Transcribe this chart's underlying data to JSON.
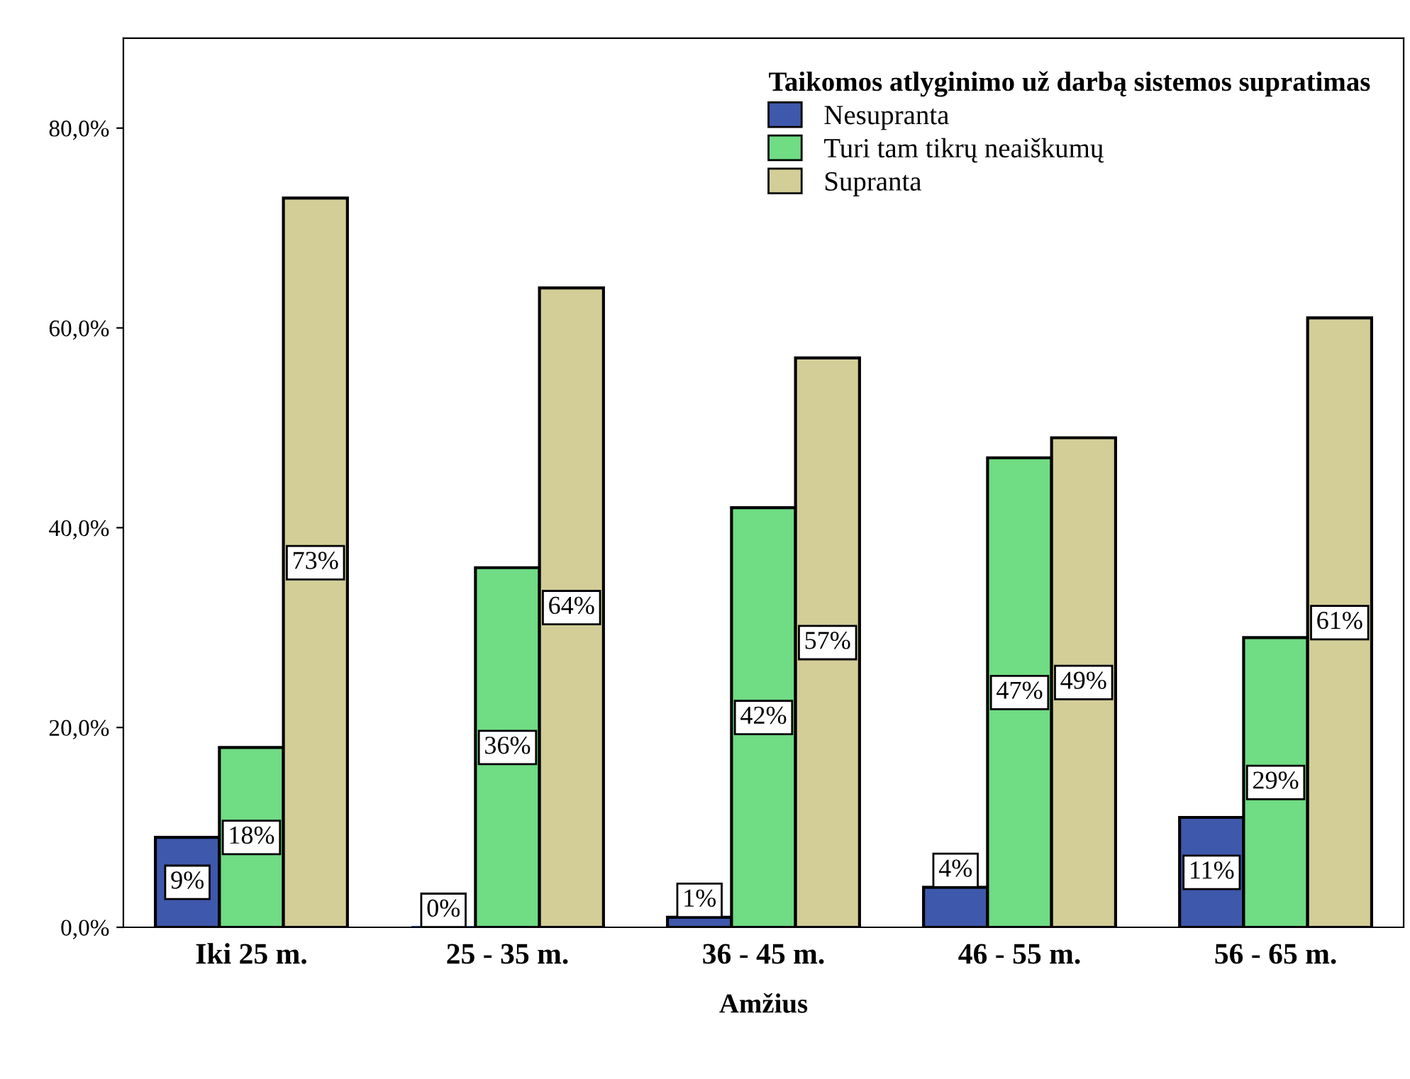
{
  "chart_data": {
    "type": "bar",
    "xlabel": "Amžius",
    "legend_title": "Taikomos atlyginimo už darbą sistemos supratimas",
    "legend": "top right",
    "grid": false,
    "categories": [
      "Iki 25 m.",
      "25 - 35 m.",
      "36 - 45 m.",
      "46 - 55 m.",
      "56 - 65 m."
    ],
    "series": [
      {
        "name": "Nesupranta",
        "color": "#3e58ac",
        "values": [
          9,
          0,
          1,
          4,
          11
        ],
        "value_labels": [
          "9%",
          "0%",
          "1%",
          "4%",
          "11%"
        ]
      },
      {
        "name": "Turi tam tikrų neaiškumų",
        "color": "#70dc84",
        "values": [
          18,
          36,
          42,
          47,
          29
        ],
        "value_labels": [
          "18%",
          "36%",
          "42%",
          "47%",
          "29%"
        ]
      },
      {
        "name": "Supranta",
        "color": "#d3ce97",
        "values": [
          73,
          64,
          57,
          49,
          61
        ],
        "value_labels": [
          "73%",
          "64%",
          "57%",
          "49%",
          "61%"
        ]
      }
    ],
    "ylim": [
      0,
      89
    ],
    "yticks": [
      {
        "value": 0,
        "label": "0,0%"
      },
      {
        "value": 20,
        "label": "20,0%"
      },
      {
        "value": 40,
        "label": "40,0%"
      },
      {
        "value": 60,
        "label": "60,0%"
      },
      {
        "value": 80,
        "label": "80,0%"
      }
    ]
  }
}
